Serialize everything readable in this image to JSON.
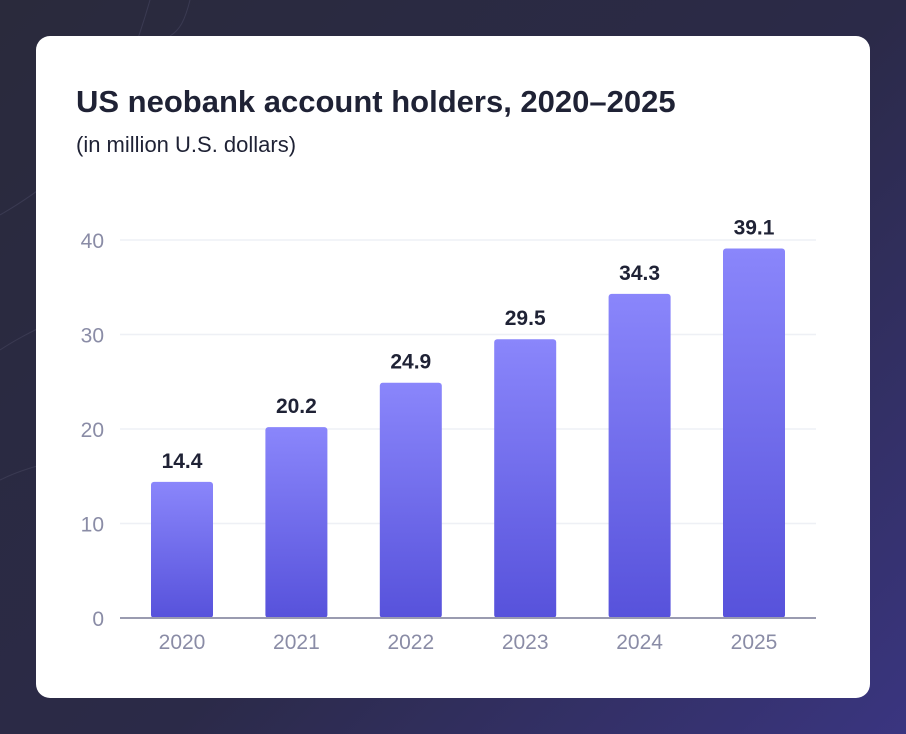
{
  "colors": {
    "bar_top": "#8a86fb",
    "bar_bottom": "#5752db",
    "grid": "#eef0f5",
    "axis": "#9a9bb0"
  },
  "chart_data": {
    "type": "bar",
    "title": "US neobank account holders, 2020–2025",
    "subtitle": "(in million U.S. dollars)",
    "xlabel": "",
    "ylabel": "",
    "categories": [
      "2020",
      "2021",
      "2022",
      "2023",
      "2024",
      "2025"
    ],
    "values": [
      14.4,
      20.2,
      24.9,
      29.5,
      34.3,
      39.1
    ],
    "data_labels": [
      "14.4",
      "20.2",
      "24.9",
      "29.5",
      "34.3",
      "39.1"
    ],
    "y_ticks": [
      0,
      10,
      20,
      30,
      40
    ],
    "ylim": [
      0,
      40
    ],
    "grid": true,
    "legend": "none"
  }
}
